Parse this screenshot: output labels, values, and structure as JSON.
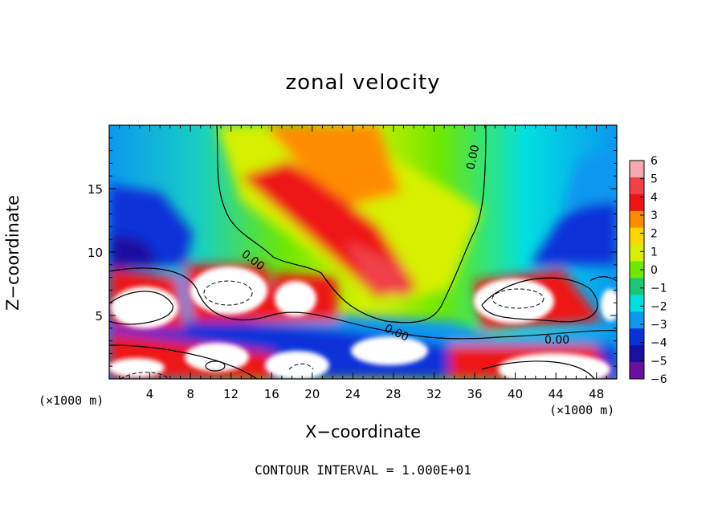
{
  "chart_data": {
    "type": "heatmap",
    "title": "zonal velocity",
    "xlabel": "X−coordinate",
    "ylabel": "Z−coordinate",
    "x_unit_label": "(×1000 m)",
    "xlim": [
      0,
      50
    ],
    "ylim": [
      0,
      20
    ],
    "x_ticks": [
      4,
      8,
      12,
      16,
      20,
      24,
      28,
      32,
      36,
      40,
      44,
      48
    ],
    "y_ticks": [
      5,
      10,
      15
    ],
    "colorbar": {
      "ticks": [
        6,
        5,
        4,
        3,
        2,
        1,
        0,
        -1,
        -2,
        -3,
        -4,
        -5,
        -6
      ],
      "tick_labels": [
        "6",
        "5",
        "4",
        "3",
        "2",
        "1",
        "0",
        "−1",
        "−2",
        "−3",
        "−4",
        "−5",
        "−6"
      ],
      "colors": [
        "#f7a8b0",
        "#f0404a",
        "#ee1414",
        "#ff8c00",
        "#ffd700",
        "#d6f000",
        "#6ee800",
        "#18c878",
        "#00e0e0",
        "#0c98f0",
        "#0830d8",
        "#1a0fa0",
        "#6a0fa0"
      ],
      "range": [
        -6,
        6
      ]
    },
    "contour_labels": [
      "0.00",
      "0.00",
      "0.00",
      "0.00"
    ],
    "contour_interval_text": "CONTOUR INTERVAL = 1.000E+01",
    "grid": false,
    "legend": "colorbar-right"
  }
}
